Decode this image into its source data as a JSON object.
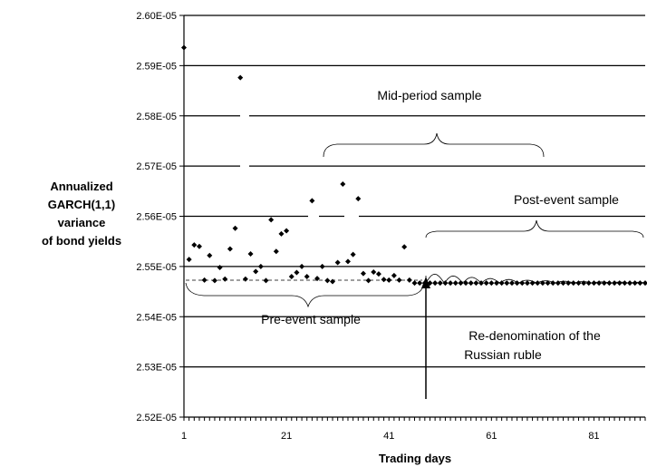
{
  "chart_data": {
    "type": "scatter",
    "title": "",
    "xlabel": "Trading days",
    "ylabel": [
      "Annualized",
      "GARCH(1,1)",
      "variance",
      "of bond yields"
    ],
    "xlim": [
      1,
      91
    ],
    "ylim": [
      2.52e-05,
      2.6e-05
    ],
    "x_ticks": [
      1,
      21,
      41,
      61,
      81
    ],
    "x_tick_labels": [
      "1",
      "21",
      "41",
      "61",
      "81"
    ],
    "y_ticks": [
      2.52e-05,
      2.53e-05,
      2.54e-05,
      2.55e-05,
      2.56e-05,
      2.57e-05,
      2.58e-05,
      2.59e-05,
      2.6e-05
    ],
    "y_tick_labels": [
      "2.52E-05",
      "2.53E-05",
      "2.54E-05",
      "2.55E-05",
      "2.56E-05",
      "2.57E-05",
      "2.58E-05",
      "2.59E-05",
      "2.60E-05"
    ],
    "grid": true,
    "series": [
      {
        "marker": "diamond",
        "x": [
          1,
          2,
          3,
          4,
          5,
          6,
          7,
          8,
          9,
          10,
          11,
          12,
          13,
          14,
          15,
          16,
          17,
          18,
          19,
          20,
          21,
          22,
          23,
          24,
          25,
          26,
          27,
          28,
          29,
          30,
          31,
          32,
          33,
          34,
          35,
          36,
          37,
          38,
          39,
          40,
          41,
          42,
          43,
          44,
          45,
          46,
          47,
          48,
          49,
          50,
          51,
          52,
          53,
          54,
          55,
          56,
          57,
          58,
          59,
          60,
          61,
          62,
          63,
          64,
          65,
          66,
          67,
          68,
          69,
          70,
          71,
          72,
          73,
          74,
          75,
          76,
          77,
          78,
          79,
          80,
          81,
          82,
          83,
          84,
          85,
          86,
          87,
          88,
          89,
          90,
          91
        ],
        "y": [
          2.5936e-05,
          2.5514e-05,
          2.5543e-05,
          2.554e-05,
          2.5473e-05,
          2.5522e-05,
          2.5472e-05,
          2.5498e-05,
          2.5475e-05,
          2.5535e-05,
          2.5576e-05,
          2.5876e-05,
          2.5475e-05,
          2.5525e-05,
          2.549e-05,
          2.55e-05,
          2.5472e-05,
          2.5593e-05,
          2.553e-05,
          2.5565e-05,
          2.5571e-05,
          2.548e-05,
          2.5488e-05,
          2.55e-05,
          2.548e-05,
          2.5631e-05,
          2.5476e-05,
          2.55e-05,
          2.5472e-05,
          2.547e-05,
          2.5508e-05,
          2.5664e-05,
          2.551e-05,
          2.5524e-05,
          2.5635e-05,
          2.5486e-05,
          2.5472e-05,
          2.5489e-05,
          2.5485e-05,
          2.5474e-05,
          2.5473e-05,
          2.5482e-05,
          2.5473e-05,
          2.5539e-05,
          2.5473e-05,
          2.5467e-05,
          2.5467e-05,
          2.5467e-05,
          2.5467e-05,
          2.5467e-05,
          2.5467e-05,
          2.5467e-05,
          2.5467e-05,
          2.5467e-05,
          2.5467e-05,
          2.5467e-05,
          2.5467e-05,
          2.5467e-05,
          2.5467e-05,
          2.5467e-05,
          2.5467e-05,
          2.5467e-05,
          2.5467e-05,
          2.5467e-05,
          2.5467e-05,
          2.5467e-05,
          2.5467e-05,
          2.5467e-05,
          2.5467e-05,
          2.5467e-05,
          2.5467e-05,
          2.5467e-05,
          2.5467e-05,
          2.5467e-05,
          2.5467e-05,
          2.5467e-05,
          2.5467e-05,
          2.5467e-05,
          2.5467e-05,
          2.5467e-05,
          2.5467e-05,
          2.5467e-05,
          2.5467e-05,
          2.5467e-05,
          2.5467e-05,
          2.5467e-05,
          2.5467e-05,
          2.5467e-05,
          2.5467e-05,
          2.5467e-05,
          2.5467e-05
        ]
      }
    ],
    "annotations": [
      {
        "text": "Mid-period sample"
      },
      {
        "text": "Post-event sample"
      },
      {
        "text": "Pre-event  sample"
      },
      {
        "text": "Re-denomination of the"
      },
      {
        "text": "Russian ruble"
      }
    ]
  }
}
